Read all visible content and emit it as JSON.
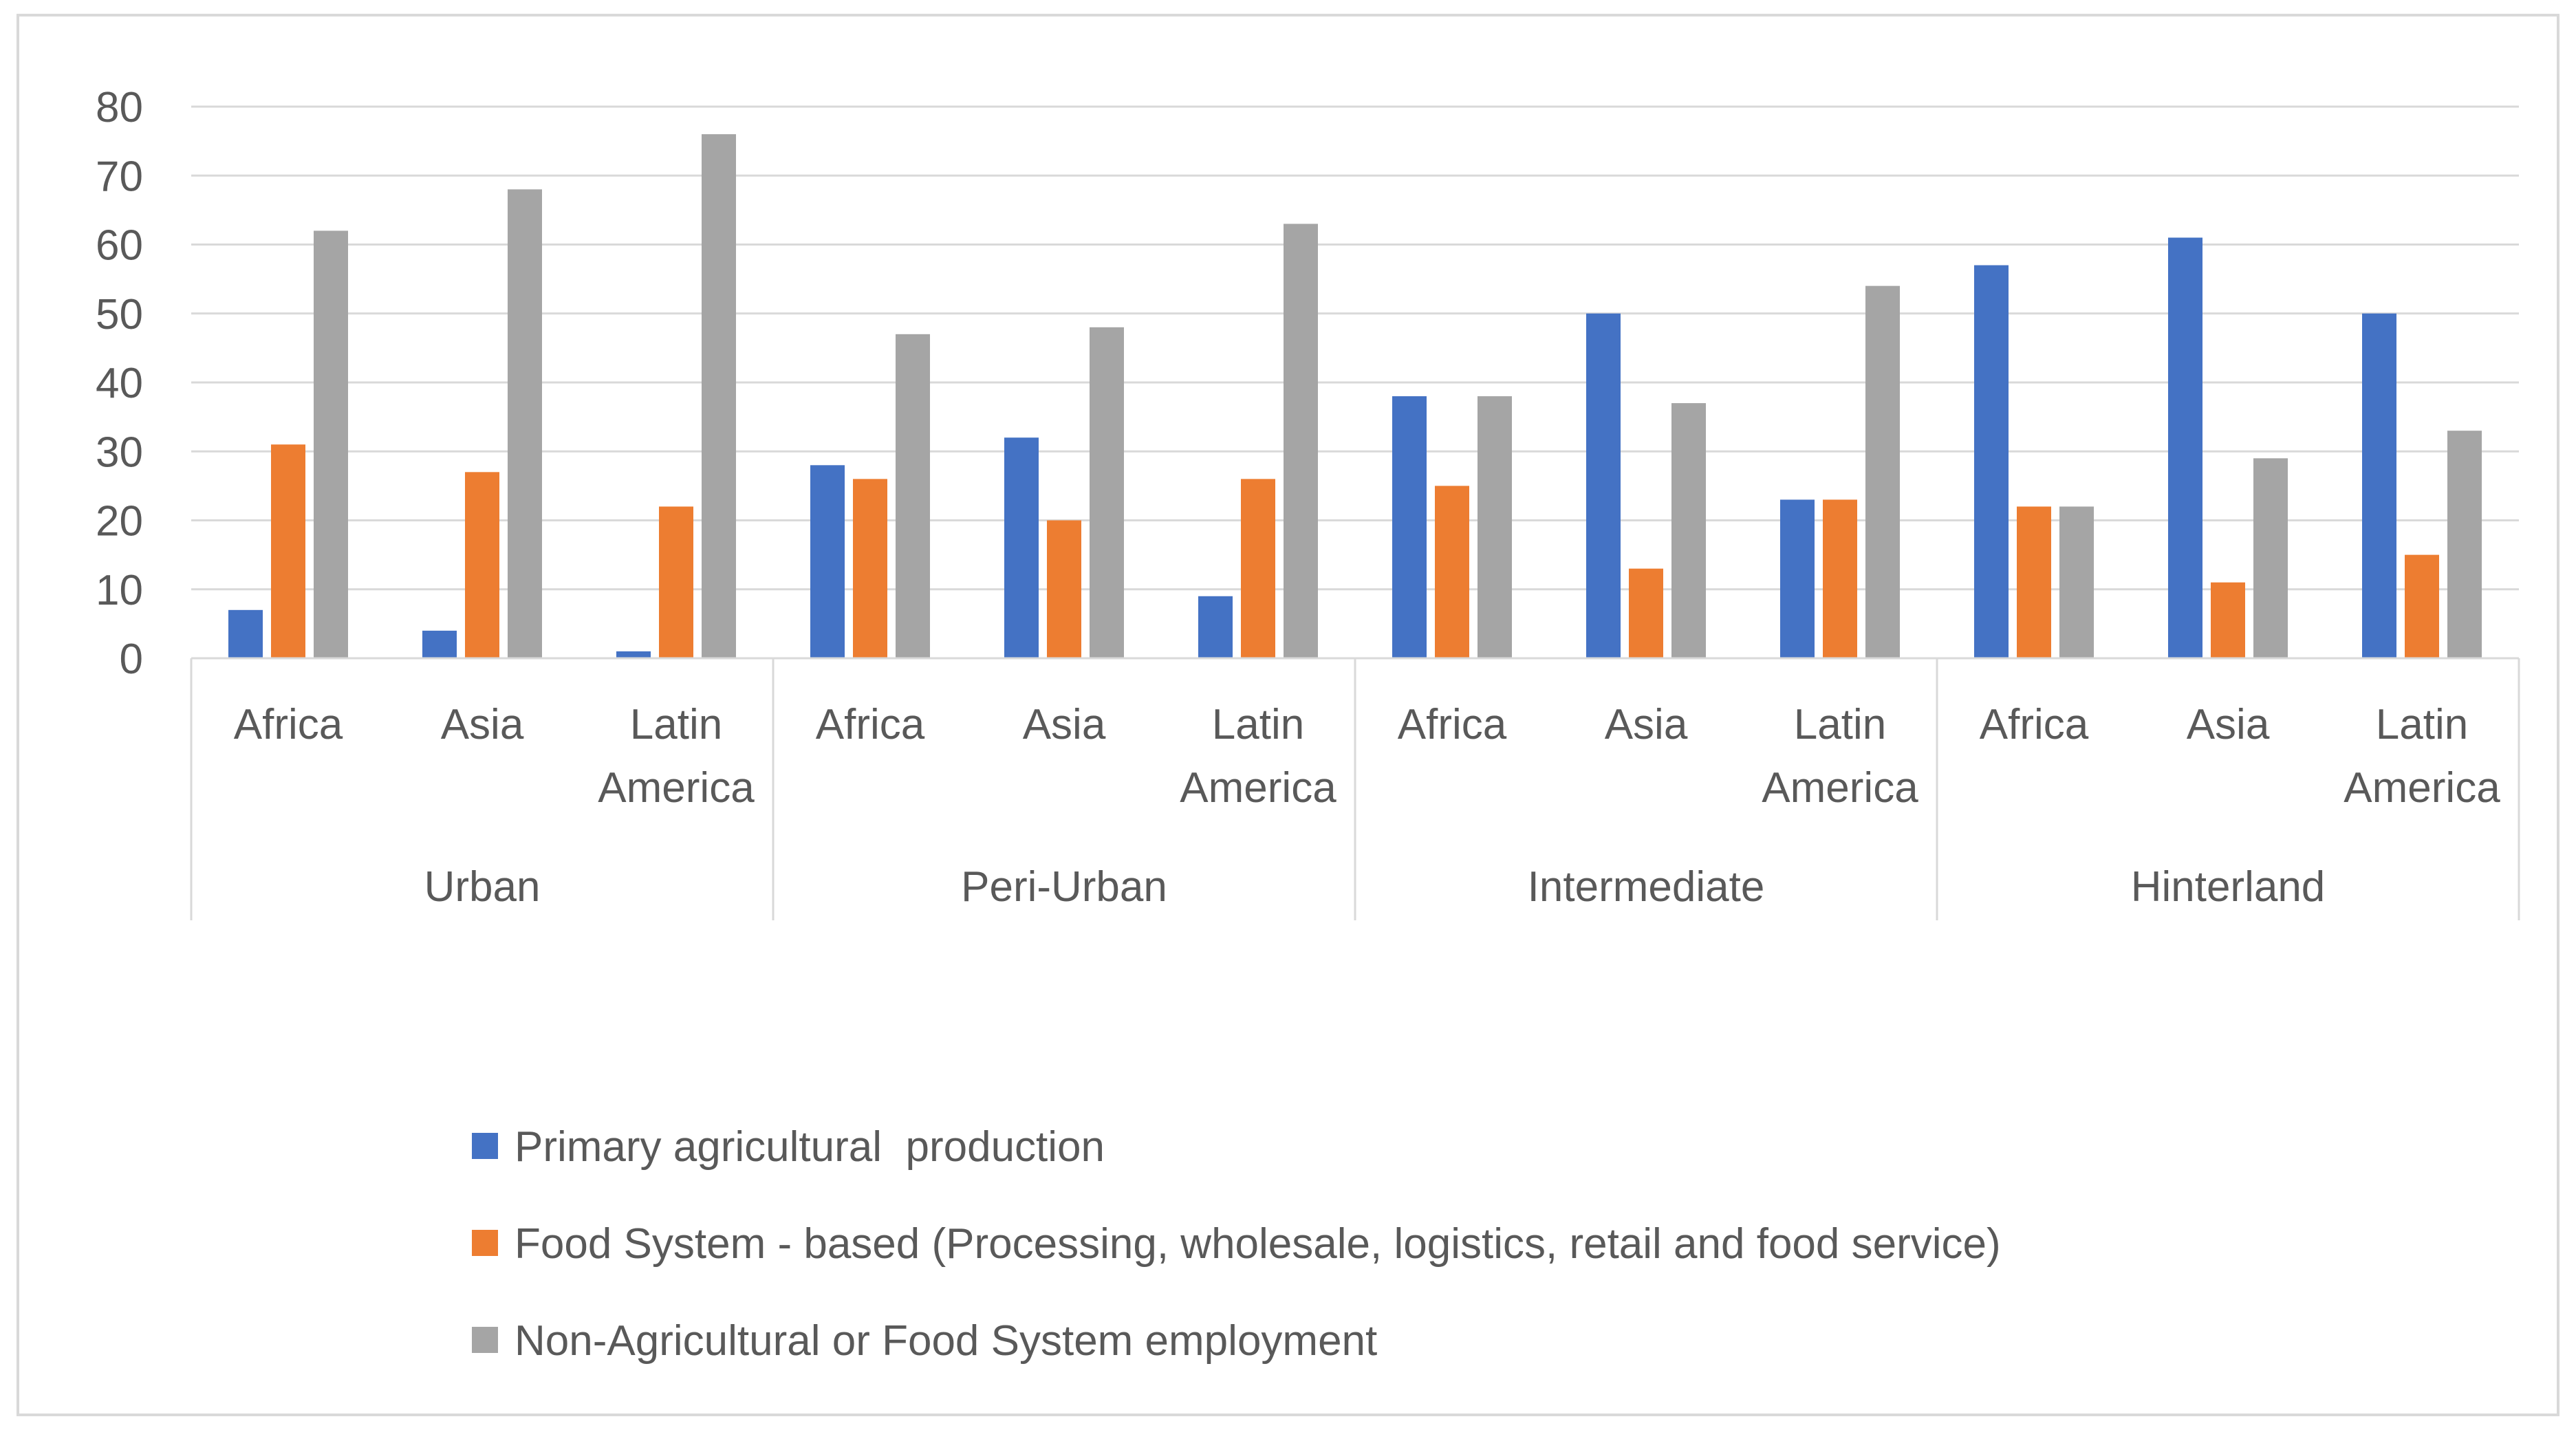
{
  "chart_data": {
    "type": "bar",
    "title": "",
    "xlabel": "",
    "ylabel": "",
    "ylim": [
      0,
      80
    ],
    "yticks": [
      0,
      10,
      20,
      30,
      40,
      50,
      60,
      70,
      80
    ],
    "grid": true,
    "legend_position": "bottom",
    "groups": [
      {
        "name": "Urban",
        "categories": [
          [
            "Africa"
          ],
          [
            "Asia"
          ],
          [
            "Latin",
            "America"
          ]
        ]
      },
      {
        "name": "Peri-Urban",
        "categories": [
          [
            "Africa"
          ],
          [
            "Asia"
          ],
          [
            "Latin",
            "America"
          ]
        ]
      },
      {
        "name": "Intermediate",
        "categories": [
          [
            "Africa"
          ],
          [
            "Asia"
          ],
          [
            "Latin",
            "America"
          ]
        ]
      },
      {
        "name": "Hinterland",
        "categories": [
          [
            "Africa"
          ],
          [
            "Asia"
          ],
          [
            "Latin",
            "America"
          ]
        ]
      }
    ],
    "series": [
      {
        "name": "Primary agricultural  production",
        "color": "#4472C4",
        "values": [
          7,
          4,
          1,
          28,
          32,
          9,
          38,
          50,
          23,
          57,
          61,
          50
        ]
      },
      {
        "name": "Food System - based (Processing, wholesale, logistics, retail and food service)",
        "color": "#ED7D31",
        "values": [
          31,
          27,
          22,
          26,
          20,
          26,
          25,
          13,
          23,
          22,
          11,
          15
        ]
      },
      {
        "name": "Non-Agricultural or Food System employment",
        "color": "#A5A5A5",
        "values": [
          62,
          68,
          76,
          47,
          48,
          63,
          38,
          37,
          54,
          22,
          29,
          33
        ]
      }
    ]
  }
}
